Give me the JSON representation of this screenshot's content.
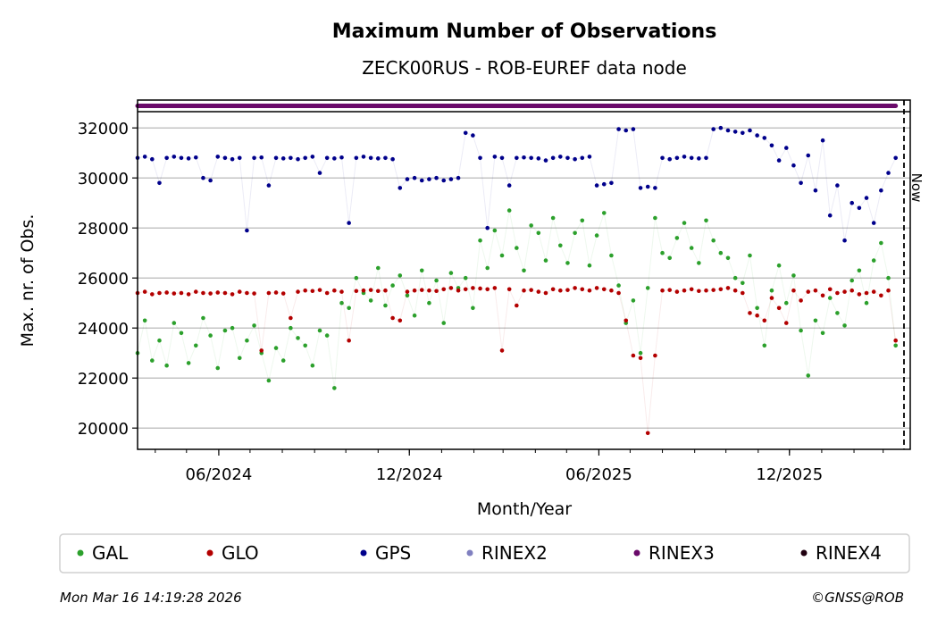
{
  "chart_data": {
    "type": "scatter",
    "title": "Maximum Number of Observations",
    "subtitle": "ZECK00RUS - ROB-EUREF data node",
    "xlabel": "Month/Year",
    "ylabel": "Max. nr. of Obs.",
    "ylim": [
      19150,
      32650
    ],
    "xlim": [
      "2024-03-15",
      "2026-03-27"
    ],
    "yticks": [
      20000,
      22000,
      24000,
      26000,
      28000,
      30000,
      32000
    ],
    "ytick_labels": [
      "20000",
      "22000",
      "24000",
      "26000",
      "28000",
      "30000",
      "32000"
    ],
    "xticks": [
      {
        "date": "2024-06-01",
        "label": "06/2024"
      },
      {
        "date": "2024-12-01",
        "label": "12/2024"
      },
      {
        "date": "2025-06-01",
        "label": "06/2025"
      },
      {
        "date": "2025-12-01",
        "label": "12/2025"
      }
    ],
    "grid": "horizontal",
    "now_marker": {
      "date": "2026-03-21",
      "label": "Now"
    },
    "series_start_date": "2024-03-15",
    "series_step_days": 7,
    "series": [
      {
        "name": "GAL",
        "color": "#2ca02c",
        "values": [
          23000,
          24300,
          22700,
          23500,
          22500,
          24200,
          23800,
          22600,
          23300,
          24400,
          23700,
          22400,
          23900,
          24000,
          22800,
          23500,
          24100,
          23000,
          21900,
          23200,
          22700,
          24000,
          23600,
          23300,
          22500,
          23900,
          23700,
          21600,
          25000,
          24800,
          26000,
          25400,
          25100,
          26400,
          24900,
          25700,
          26100,
          25300,
          24500,
          26300,
          25000,
          25900,
          24200,
          26200,
          25600,
          26000,
          24800,
          27500,
          26400,
          27900,
          26900,
          28700,
          27200,
          26300,
          28100,
          27800,
          26700,
          28400,
          27300,
          26600,
          27800,
          28300,
          26500,
          27700,
          28600,
          26900,
          25700,
          24200,
          25100,
          23000,
          25600,
          28400,
          27000,
          26800,
          27600,
          28200,
          27200,
          26600,
          28300,
          27500,
          27000,
          26800,
          26000,
          25800,
          26900,
          24800,
          23300,
          25500,
          26500,
          25000,
          26100,
          23900,
          22100,
          24300,
          23800,
          25200,
          24600,
          24100,
          25900,
          26300,
          25000,
          26700,
          27400,
          26000,
          23300
        ]
      },
      {
        "name": "GLO",
        "color": "#b30000",
        "values": [
          25400,
          25450,
          25350,
          25400,
          25420,
          25380,
          25400,
          25350,
          25450,
          25400,
          25380,
          25420,
          25400,
          25350,
          25450,
          25400,
          25380,
          23100,
          25400,
          25420,
          25380,
          24400,
          25450,
          25500,
          25480,
          25520,
          25400,
          25500,
          25450,
          23500,
          25480,
          25500,
          25520,
          25480,
          25500,
          24400,
          24300,
          25450,
          25500,
          25520,
          25500,
          25480,
          25550,
          25600,
          25500,
          25550,
          25600,
          25580,
          25550,
          25600,
          23100,
          25550,
          24900,
          25500,
          25520,
          25450,
          25400,
          25550,
          25500,
          25520,
          25600,
          25550,
          25500,
          25600,
          25550,
          25500,
          25400,
          24300,
          22900,
          22800,
          19800,
          22900,
          25500,
          25520,
          25450,
          25500,
          25550,
          25480,
          25500,
          25520,
          25550,
          25600,
          25500,
          25400,
          24600,
          24500,
          24300,
          25200,
          24800,
          24200,
          25500,
          25100,
          25450,
          25500,
          25300,
          25550,
          25400,
          25450,
          25500,
          25350,
          25400,
          25450,
          25300,
          25500,
          23500
        ]
      },
      {
        "name": "GPS",
        "color": "#00008b",
        "values": [
          30800,
          30850,
          30750,
          29800,
          30800,
          30850,
          30800,
          30780,
          30820,
          30000,
          29900,
          30850,
          30800,
          30750,
          30800,
          27900,
          30800,
          30820,
          29700,
          30800,
          30780,
          30800,
          30750,
          30800,
          30850,
          30200,
          30800,
          30780,
          30820,
          28200,
          30800,
          30850,
          30800,
          30780,
          30800,
          30750,
          29600,
          29950,
          30000,
          29900,
          29950,
          30000,
          29900,
          29950,
          30000,
          31800,
          31700,
          30800,
          28000,
          30850,
          30800,
          29700,
          30800,
          30820,
          30800,
          30780,
          30700,
          30800,
          30850,
          30800,
          30750,
          30800,
          30850,
          29700,
          29750,
          29800,
          31950,
          31900,
          31950,
          29600,
          29650,
          29600,
          30800,
          30750,
          30800,
          30850,
          30800,
          30780,
          30800,
          31950,
          32000,
          31900,
          31850,
          31800,
          31900,
          31700,
          31600,
          31300,
          30700,
          31200,
          30500,
          29800,
          30900,
          29500,
          31500,
          28500,
          29700,
          27500,
          29000,
          28800,
          29200,
          28200,
          29500,
          30200,
          30800
        ]
      },
      {
        "name": "RINEX2",
        "color": "#8080c0",
        "values": []
      },
      {
        "name": "RINEX3",
        "color": "#6a0a6a",
        "strip": true,
        "start": "2024-03-15",
        "end": "2026-03-13"
      },
      {
        "name": "RINEX4",
        "color": "#200010",
        "values": []
      }
    ]
  },
  "legend": [
    "GAL",
    "GLO",
    "GPS",
    "RINEX2",
    "RINEX3",
    "RINEX4"
  ],
  "footer": {
    "timestamp": "Mon Mar 16 14:19:28 2026",
    "copyright": "©GNSS@ROB"
  }
}
